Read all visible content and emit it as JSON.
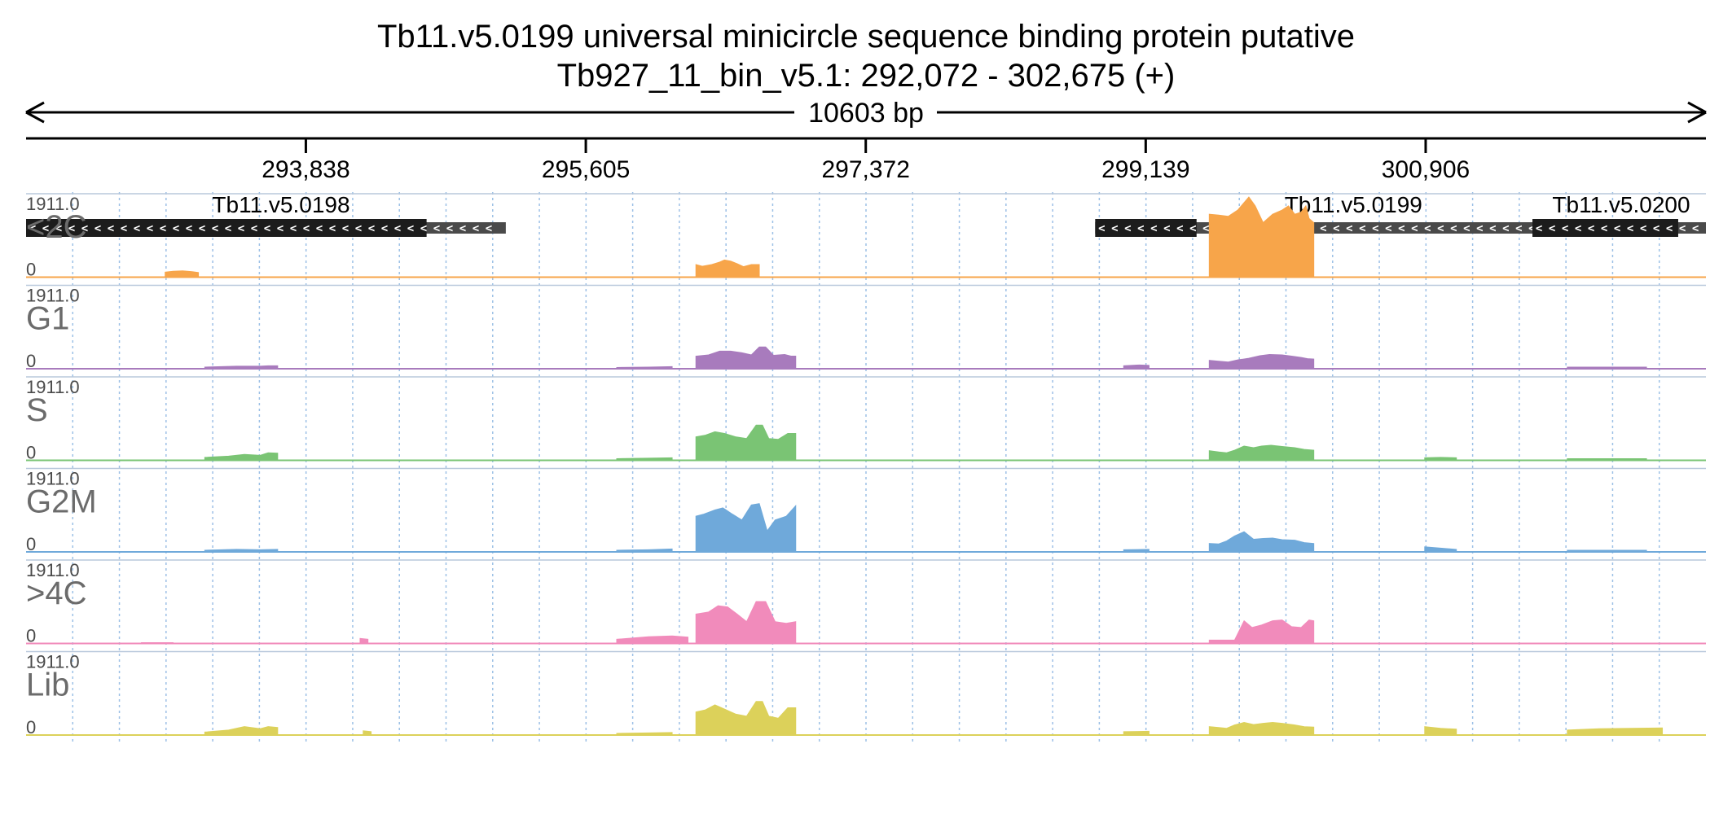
{
  "title": "Tb11.v5.0199  universal minicircle sequence binding protein  putative",
  "subtitle": "Tb927_11_bin_v5.1: 292,072 - 302,675 (+)",
  "span_label": "10603 bp",
  "chart_data": {
    "type": "area",
    "region": {
      "chrom": "Tb927_11_bin_v5.1",
      "start": 292072,
      "end": 302675,
      "strand": "+"
    },
    "ticks": [
      293838,
      295605,
      297372,
      299139,
      300906
    ],
    "tick_labels": [
      "293,838",
      "295,605",
      "297,372",
      "299,139",
      "300,906"
    ],
    "genes": [
      {
        "name": "Tb11.v5.0198",
        "strand": "-",
        "utr": [
          292072,
          295100
        ],
        "cds": [
          292072,
          294600
        ]
      },
      {
        "name": "Tb11.v5.0199",
        "strand": "-",
        "utr": [
          298820,
          302080
        ],
        "cds": [
          298820,
          299460
        ]
      },
      {
        "name": "Tb11.v5.0200",
        "strand": "-",
        "utr": [
          301580,
          302675
        ],
        "cds": [
          301580,
          302500
        ]
      }
    ],
    "y_range": [
      0,
      1911.0
    ],
    "y_max_label": "1911.0",
    "y_min_label": "0",
    "series": [
      {
        "name": "<2C",
        "color": "#f7a54a",
        "segments": [
          [
            [
              292950,
              120
            ],
            [
              293000,
              140
            ],
            [
              293060,
              150
            ],
            [
              293120,
              130
            ],
            [
              293160,
              110
            ],
            [
              293160,
              0
            ]
          ],
          [
            [
              296300,
              300
            ],
            [
              296340,
              260
            ],
            [
              296400,
              300
            ],
            [
              296450,
              360
            ],
            [
              296480,
              410
            ],
            [
              296520,
              380
            ],
            [
              296560,
              320
            ],
            [
              296600,
              250
            ],
            [
              296650,
              300
            ],
            [
              296700,
              300
            ]
          ],
          [
            [
              299540,
              1500
            ],
            [
              299600,
              1480
            ],
            [
              299660,
              1450
            ],
            [
              299720,
              1600
            ],
            [
              299790,
              1911
            ],
            [
              299830,
              1700
            ],
            [
              299880,
              1300
            ],
            [
              299940,
              1500
            ],
            [
              300000,
              1600
            ],
            [
              300040,
              1700
            ],
            [
              300080,
              1500
            ],
            [
              300120,
              1550
            ],
            [
              300150,
              1700
            ],
            [
              300170,
              1400
            ],
            [
              300200,
              1300
            ]
          ]
        ]
      },
      {
        "name": "G1",
        "color": "#a87bbd",
        "segments": [
          [
            [
              293200,
              40
            ],
            [
              293400,
              60
            ],
            [
              293550,
              60
            ],
            [
              293600,
              70
            ],
            [
              293660,
              70
            ]
          ],
          [
            [
              295800,
              30
            ],
            [
              296000,
              40
            ],
            [
              296150,
              50
            ]
          ],
          [
            [
              296300,
              300
            ],
            [
              296380,
              330
            ],
            [
              296450,
              420
            ],
            [
              296520,
              420
            ],
            [
              296590,
              380
            ],
            [
              296650,
              330
            ],
            [
              296700,
              520
            ],
            [
              296740,
              520
            ],
            [
              296790,
              320
            ],
            [
              296860,
              340
            ],
            [
              296900,
              300
            ],
            [
              296930,
              300
            ]
          ],
          [
            [
              299000,
              70
            ],
            [
              299100,
              90
            ],
            [
              299160,
              80
            ]
          ],
          [
            [
              299540,
              200
            ],
            [
              299600,
              180
            ],
            [
              299660,
              160
            ],
            [
              299720,
              210
            ],
            [
              299790,
              250
            ],
            [
              299860,
              310
            ],
            [
              299920,
              340
            ],
            [
              300000,
              330
            ],
            [
              300060,
              300
            ],
            [
              300120,
              270
            ],
            [
              300160,
              240
            ],
            [
              300200,
              230
            ]
          ],
          [
            [
              301800,
              40
            ],
            [
              302100,
              40
            ],
            [
              302300,
              40
            ]
          ]
        ]
      },
      {
        "name": "S",
        "color": "#7ac474",
        "segments": [
          [
            [
              293200,
              70
            ],
            [
              293350,
              100
            ],
            [
              293450,
              140
            ],
            [
              293550,
              120
            ],
            [
              293600,
              180
            ],
            [
              293660,
              170
            ]
          ],
          [
            [
              295800,
              40
            ],
            [
              296000,
              50
            ],
            [
              296150,
              60
            ]
          ],
          [
            [
              296300,
              560
            ],
            [
              296360,
              600
            ],
            [
              296420,
              680
            ],
            [
              296480,
              640
            ],
            [
              296550,
              560
            ],
            [
              296620,
              520
            ],
            [
              296680,
              840
            ],
            [
              296720,
              840
            ],
            [
              296760,
              520
            ],
            [
              296820,
              500
            ],
            [
              296880,
              640
            ],
            [
              296930,
              640
            ]
          ],
          [
            [
              299540,
              230
            ],
            [
              299600,
              200
            ],
            [
              299650,
              180
            ],
            [
              299700,
              240
            ],
            [
              299760,
              340
            ],
            [
              299820,
              300
            ],
            [
              299870,
              340
            ],
            [
              299930,
              360
            ],
            [
              300000,
              330
            ],
            [
              300080,
              300
            ],
            [
              300140,
              260
            ],
            [
              300200,
              240
            ]
          ],
          [
            [
              300900,
              60
            ],
            [
              301000,
              70
            ],
            [
              301100,
              60
            ]
          ],
          [
            [
              301800,
              40
            ],
            [
              302100,
              40
            ],
            [
              302300,
              40
            ]
          ]
        ]
      },
      {
        "name": "G2M",
        "color": "#6fa9da",
        "segments": [
          [
            [
              293200,
              40
            ],
            [
              293400,
              60
            ],
            [
              293550,
              50
            ],
            [
              293660,
              60
            ]
          ],
          [
            [
              295800,
              40
            ],
            [
              296000,
              50
            ],
            [
              296150,
              70
            ]
          ],
          [
            [
              296300,
              850
            ],
            [
              296350,
              900
            ],
            [
              296420,
              1000
            ],
            [
              296470,
              1050
            ],
            [
              296530,
              900
            ],
            [
              296590,
              760
            ],
            [
              296650,
              1120
            ],
            [
              296700,
              1150
            ],
            [
              296750,
              500
            ],
            [
              296800,
              760
            ],
            [
              296870,
              850
            ],
            [
              296930,
              1100
            ]
          ],
          [
            [
              299000,
              50
            ],
            [
              299160,
              60
            ]
          ],
          [
            [
              299540,
              200
            ],
            [
              299600,
              190
            ],
            [
              299650,
              260
            ],
            [
              299700,
              380
            ],
            [
              299760,
              480
            ],
            [
              299820,
              300
            ],
            [
              299880,
              320
            ],
            [
              299940,
              330
            ],
            [
              300000,
              290
            ],
            [
              300080,
              280
            ],
            [
              300140,
              220
            ],
            [
              300200,
              200
            ]
          ],
          [
            [
              300900,
              120
            ],
            [
              301000,
              90
            ],
            [
              301100,
              60
            ]
          ],
          [
            [
              301800,
              40
            ],
            [
              302100,
              40
            ],
            [
              302300,
              40
            ]
          ]
        ]
      },
      {
        "name": ">4C",
        "color": "#f18bbb",
        "segments": [
          [
            [
              292800,
              20
            ],
            [
              293000,
              20
            ]
          ],
          [
            [
              294180,
              120
            ],
            [
              294230,
              100
            ]
          ],
          [
            [
              295800,
              100
            ],
            [
              296000,
              160
            ],
            [
              296150,
              180
            ],
            [
              296250,
              150
            ]
          ],
          [
            [
              296300,
              700
            ],
            [
              296380,
              750
            ],
            [
              296440,
              900
            ],
            [
              296500,
              870
            ],
            [
              296560,
              700
            ],
            [
              296620,
              520
            ],
            [
              296680,
              1000
            ],
            [
              296740,
              1000
            ],
            [
              296800,
              520
            ],
            [
              296870,
              480
            ],
            [
              296930,
              520
            ]
          ],
          [
            [
              299540,
              80
            ],
            [
              299700,
              80
            ],
            [
              299760,
              540
            ],
            [
              299810,
              380
            ],
            [
              299870,
              440
            ],
            [
              299940,
              540
            ],
            [
              300000,
              560
            ],
            [
              300060,
              400
            ],
            [
              300120,
              380
            ],
            [
              300170,
              560
            ],
            [
              300200,
              540
            ]
          ]
        ]
      },
      {
        "name": "Lib",
        "color": "#dcd15a",
        "segments": [
          [
            [
              293200,
              70
            ],
            [
              293350,
              120
            ],
            [
              293450,
              200
            ],
            [
              293550,
              150
            ],
            [
              293600,
              200
            ],
            [
              293660,
              180
            ]
          ],
          [
            [
              294200,
              100
            ],
            [
              294250,
              80
            ]
          ],
          [
            [
              295800,
              40
            ],
            [
              296000,
              50
            ],
            [
              296150,
              60
            ]
          ],
          [
            [
              296300,
              550
            ],
            [
              296360,
              600
            ],
            [
              296420,
              720
            ],
            [
              296480,
              620
            ],
            [
              296550,
              500
            ],
            [
              296620,
              450
            ],
            [
              296680,
              800
            ],
            [
              296720,
              800
            ],
            [
              296760,
              450
            ],
            [
              296820,
              400
            ],
            [
              296880,
              650
            ],
            [
              296930,
              650
            ]
          ],
          [
            [
              299000,
              80
            ],
            [
              299160,
              90
            ]
          ],
          [
            [
              299540,
              200
            ],
            [
              299600,
              180
            ],
            [
              299650,
              160
            ],
            [
              299700,
              240
            ],
            [
              299760,
              300
            ],
            [
              299820,
              250
            ],
            [
              299880,
              280
            ],
            [
              299940,
              300
            ],
            [
              300000,
              280
            ],
            [
              300080,
              240
            ],
            [
              300140,
              200
            ],
            [
              300200,
              190
            ]
          ],
          [
            [
              300900,
              200
            ],
            [
              301000,
              160
            ],
            [
              301100,
              140
            ]
          ],
          [
            [
              301800,
              120
            ],
            [
              302000,
              150
            ],
            [
              302200,
              160
            ],
            [
              302400,
              170
            ]
          ]
        ]
      }
    ]
  }
}
